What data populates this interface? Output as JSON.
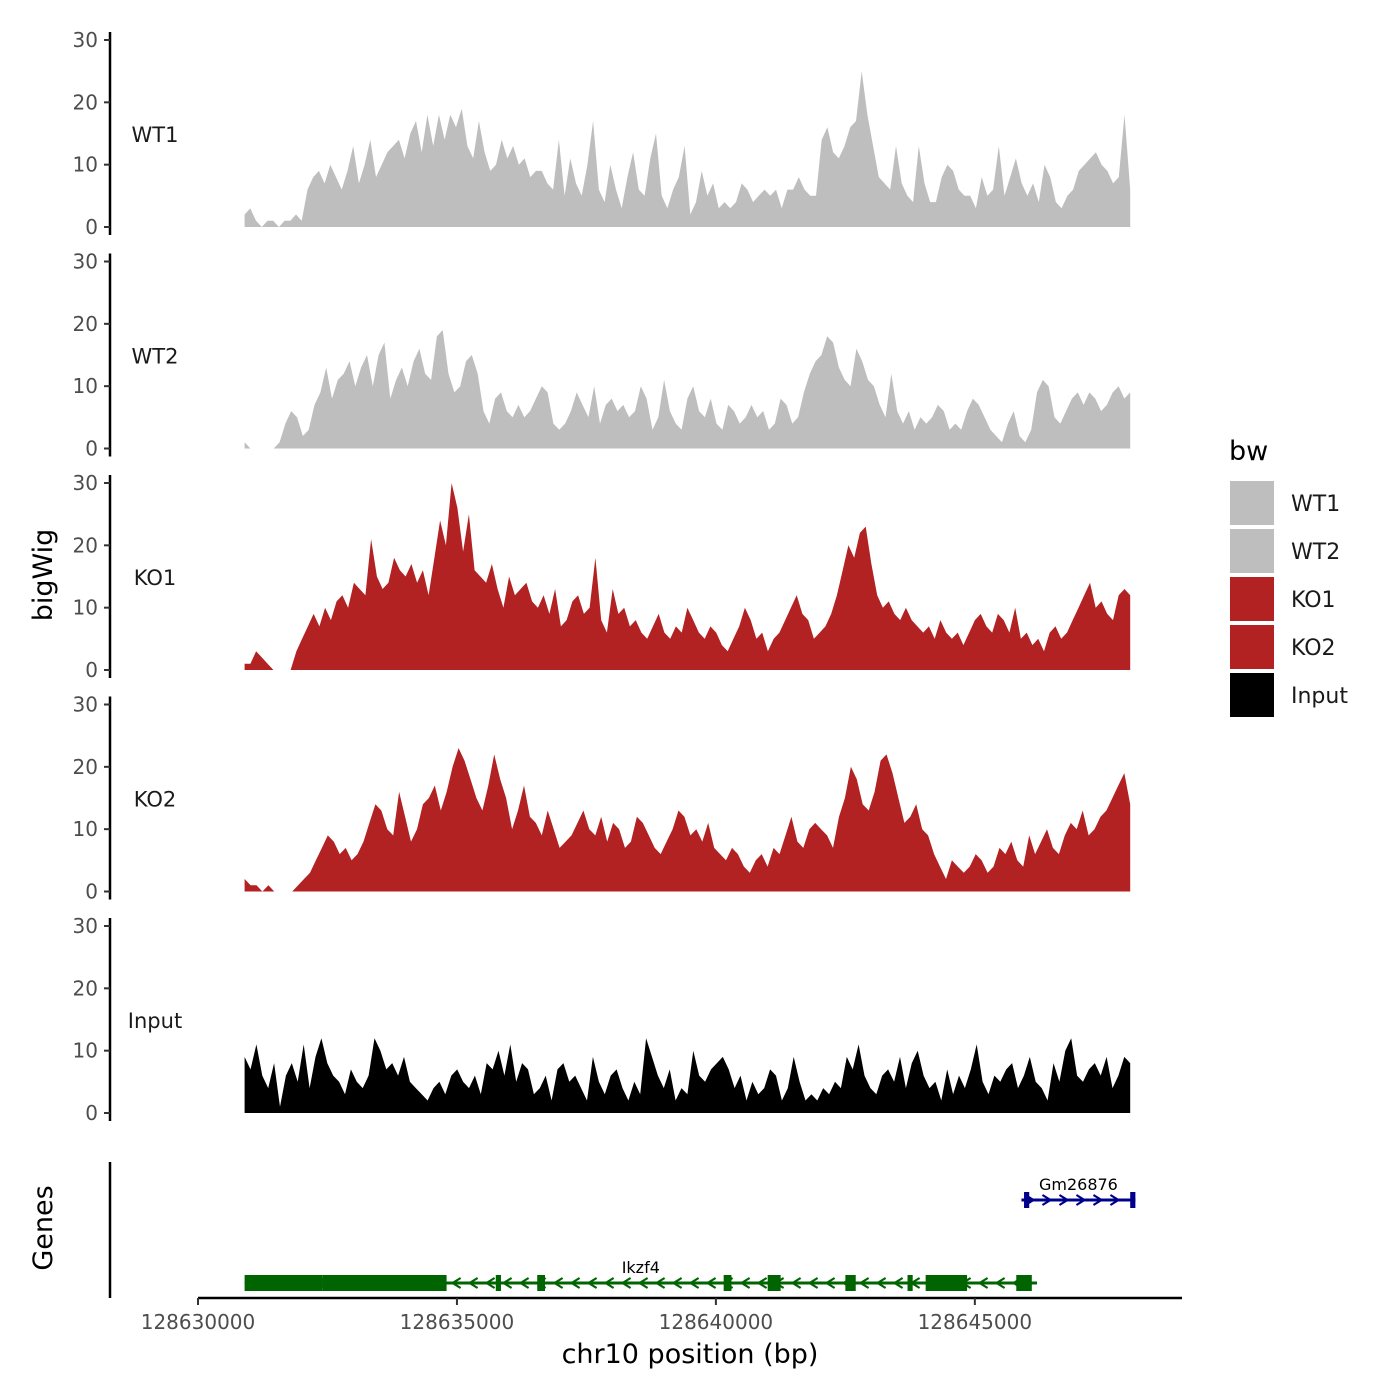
{
  "chart_data": {
    "type": "area",
    "y_axis_title": "bigWig",
    "x_axis_title": "chr10 position (bp)",
    "genes_axis_title": "Genes",
    "chromosome": "chr10",
    "ylim": [
      0,
      30
    ],
    "yticks": [
      0,
      10,
      20,
      30
    ],
    "xlim": [
      128630000,
      128649000
    ],
    "xticks": [
      128630000,
      128635000,
      128640000,
      128645000
    ],
    "xtick_labels": [
      "128630000",
      "128635000",
      "128640000",
      "128645000"
    ],
    "legend": {
      "title": "bw",
      "placement": "right",
      "entries": [
        {
          "label": "WT1",
          "color": "#bebebe"
        },
        {
          "label": "WT2",
          "color": "#bebebe"
        },
        {
          "label": "KO1",
          "color": "#b22222"
        },
        {
          "label": "KO2",
          "color": "#b22222"
        },
        {
          "label": "Input",
          "color": "#000000"
        }
      ]
    },
    "series": [
      {
        "name": "WT1",
        "color": "#bebebe",
        "x_start": 128630900,
        "x_end": 128648000,
        "values": [
          2,
          3,
          1,
          0,
          1,
          1,
          0,
          1,
          1,
          2,
          1,
          6,
          8,
          9,
          7,
          10,
          8,
          6,
          9,
          13,
          7,
          10,
          14,
          8,
          10,
          12,
          13,
          14,
          11,
          15,
          17,
          12,
          18,
          13,
          18,
          14,
          18,
          16,
          19,
          13,
          11,
          17,
          12,
          9,
          10,
          14,
          11,
          13,
          10,
          11,
          8,
          9,
          9,
          7,
          6,
          14,
          5,
          11,
          7,
          5,
          10,
          17,
          6,
          4,
          10,
          6,
          3,
          8,
          12,
          6,
          5,
          11,
          15,
          5,
          3,
          6,
          8,
          13,
          2,
          4,
          9,
          5,
          7,
          3,
          4,
          3,
          4,
          7,
          6,
          4,
          5,
          6,
          5,
          6,
          3,
          6,
          6,
          8,
          6,
          5,
          5,
          14,
          16,
          12,
          11,
          13,
          16,
          17,
          25,
          18,
          13,
          8,
          7,
          6,
          13,
          7,
          5,
          4,
          13,
          7,
          4,
          4,
          8,
          10,
          9,
          6,
          5,
          5,
          3,
          8,
          5,
          6,
          13,
          5,
          8,
          11,
          7,
          5,
          7,
          4,
          10,
          8,
          4,
          3,
          5,
          6,
          9,
          10,
          11,
          12,
          10,
          9,
          7,
          8,
          18,
          6
        ]
      },
      {
        "name": "WT2",
        "color": "#bebebe",
        "x_start": 128630900,
        "x_end": 128648000,
        "values": [
          1,
          0,
          0,
          0,
          0,
          0,
          1,
          4,
          6,
          5,
          2,
          3,
          7,
          9,
          13,
          8,
          11,
          12,
          14,
          10,
          13,
          15,
          10,
          15,
          17,
          8,
          11,
          13,
          10,
          14,
          16,
          12,
          11,
          18,
          19,
          12,
          9,
          10,
          14,
          15,
          12,
          6,
          4,
          8,
          9,
          6,
          5,
          7,
          5,
          6,
          8,
          10,
          9,
          4,
          3,
          4,
          6,
          9,
          7,
          5,
          10,
          4,
          7,
          8,
          6,
          7,
          5,
          6,
          10,
          8,
          3,
          5,
          11,
          6,
          4,
          3,
          8,
          10,
          6,
          5,
          8,
          4,
          3,
          7,
          6,
          4,
          5,
          7,
          5,
          6,
          3,
          4,
          8,
          7,
          4,
          5,
          9,
          12,
          14,
          15,
          18,
          17,
          13,
          11,
          10,
          16,
          14,
          11,
          10,
          7,
          5,
          12,
          6,
          4,
          6,
          3,
          5,
          4,
          5,
          7,
          6,
          3,
          4,
          3,
          6,
          8,
          7,
          5,
          3,
          2,
          1,
          4,
          6,
          2,
          1,
          3,
          9,
          11,
          10,
          5,
          4,
          6,
          8,
          9,
          7,
          9,
          8,
          6,
          7,
          9,
          10,
          8,
          9
        ]
      },
      {
        "name": "KO1",
        "color": "#b22222",
        "x_start": 128630900,
        "x_end": 128648000,
        "values": [
          1,
          1,
          3,
          2,
          1,
          0,
          0,
          0,
          0,
          3,
          5,
          7,
          9,
          7,
          10,
          8,
          11,
          12,
          10,
          14,
          13,
          12,
          21,
          15,
          13,
          14,
          18,
          16,
          15,
          17,
          14,
          16,
          12,
          18,
          24,
          20,
          30,
          26,
          19,
          25,
          16,
          15,
          14,
          17,
          13,
          10,
          15,
          12,
          13,
          14,
          11,
          10,
          12,
          9,
          13,
          7,
          8,
          11,
          12,
          9,
          10,
          18,
          8,
          6,
          13,
          9,
          10,
          7,
          8,
          6,
          5,
          7,
          9,
          6,
          5,
          7,
          6,
          10,
          8,
          6,
          5,
          7,
          6,
          4,
          3,
          5,
          7,
          10,
          8,
          5,
          6,
          3,
          5,
          6,
          8,
          10,
          12,
          9,
          8,
          5,
          6,
          7,
          9,
          12,
          16,
          20,
          18,
          22,
          23,
          17,
          12,
          10,
          11,
          9,
          8,
          10,
          8,
          7,
          6,
          7,
          5,
          8,
          6,
          5,
          6,
          4,
          6,
          8,
          9,
          7,
          6,
          9,
          8,
          6,
          10,
          5,
          6,
          4,
          5,
          3,
          6,
          7,
          5,
          6,
          8,
          10,
          12,
          14,
          10,
          11,
          9,
          8,
          12,
          13,
          12
        ]
      },
      {
        "name": "KO2",
        "color": "#b22222",
        "x_start": 128630900,
        "x_end": 128648000,
        "values": [
          2,
          1,
          1,
          0,
          1,
          0,
          0,
          0,
          0,
          1,
          2,
          3,
          5,
          7,
          9,
          8,
          6,
          7,
          5,
          6,
          8,
          11,
          14,
          13,
          10,
          9,
          16,
          12,
          8,
          10,
          14,
          15,
          17,
          13,
          16,
          20,
          23,
          21,
          18,
          15,
          13,
          17,
          22,
          18,
          15,
          10,
          13,
          17,
          12,
          11,
          9,
          13,
          10,
          7,
          8,
          9,
          11,
          13,
          10,
          9,
          12,
          8,
          11,
          10,
          7,
          8,
          12,
          11,
          9,
          7,
          6,
          8,
          10,
          13,
          12,
          9,
          10,
          8,
          11,
          7,
          6,
          5,
          7,
          6,
          4,
          3,
          5,
          6,
          4,
          7,
          6,
          9,
          12,
          8,
          7,
          10,
          11,
          10,
          9,
          7,
          12,
          15,
          20,
          18,
          14,
          13,
          16,
          21,
          22,
          19,
          15,
          11,
          12,
          14,
          10,
          9,
          6,
          4,
          2,
          5,
          4,
          3,
          4,
          6,
          5,
          3,
          4,
          7,
          6,
          8,
          5,
          4,
          9,
          6,
          8,
          10,
          7,
          6,
          9,
          11,
          10,
          13,
          9,
          10,
          12,
          13,
          15,
          17,
          19,
          14
        ]
      },
      {
        "name": "Input",
        "color": "#000000",
        "x_start": 128630900,
        "x_end": 128648000,
        "values": [
          9,
          7,
          11,
          6,
          4,
          8,
          1,
          6,
          8,
          5,
          11,
          4,
          9,
          12,
          8,
          6,
          5,
          3,
          7,
          5,
          4,
          6,
          12,
          10,
          7,
          8,
          6,
          9,
          5,
          4,
          3,
          2,
          4,
          5,
          3,
          6,
          7,
          5,
          4,
          6,
          3,
          8,
          7,
          10,
          6,
          11,
          5,
          8,
          7,
          3,
          4,
          6,
          2,
          7,
          8,
          5,
          6,
          4,
          2,
          9,
          5,
          3,
          6,
          7,
          4,
          2,
          5,
          3,
          12,
          9,
          6,
          4,
          7,
          2,
          4,
          3,
          10,
          6,
          5,
          7,
          8,
          9,
          7,
          4,
          6,
          2,
          5,
          3,
          4,
          7,
          6,
          2,
          4,
          9,
          5,
          2,
          3,
          2,
          4,
          3,
          5,
          4,
          9,
          7,
          11,
          6,
          4,
          3,
          6,
          7,
          5,
          9,
          4,
          8,
          10,
          6,
          4,
          5,
          2,
          7,
          3,
          6,
          4,
          7,
          11,
          5,
          3,
          6,
          5,
          7,
          8,
          4,
          6,
          9,
          5,
          4,
          2,
          8,
          5,
          10,
          12,
          6,
          5,
          7,
          8,
          6,
          9,
          4,
          6,
          9,
          8
        ]
      }
    ],
    "genes": [
      {
        "name": "Gm26876",
        "strand": "+",
        "color": "#00008b",
        "start": 128645900,
        "end": 128648100,
        "exons": [
          [
            128645950,
            128646050
          ],
          [
            128648000,
            128648100
          ]
        ]
      },
      {
        "name": "Ikzf4",
        "strand": "-",
        "color": "#006400",
        "start": 128630900,
        "end": 128646200,
        "exons": [
          [
            128630900,
            128632400
          ],
          [
            128632400,
            128634800
          ],
          [
            128635750,
            128635850
          ],
          [
            128636550,
            128636700
          ],
          [
            128640150,
            128640300
          ],
          [
            128641000,
            128641250
          ],
          [
            128642500,
            128642700
          ],
          [
            128643700,
            128643800
          ],
          [
            128644050,
            128644850
          ],
          [
            128645800,
            128646100
          ]
        ]
      }
    ]
  }
}
